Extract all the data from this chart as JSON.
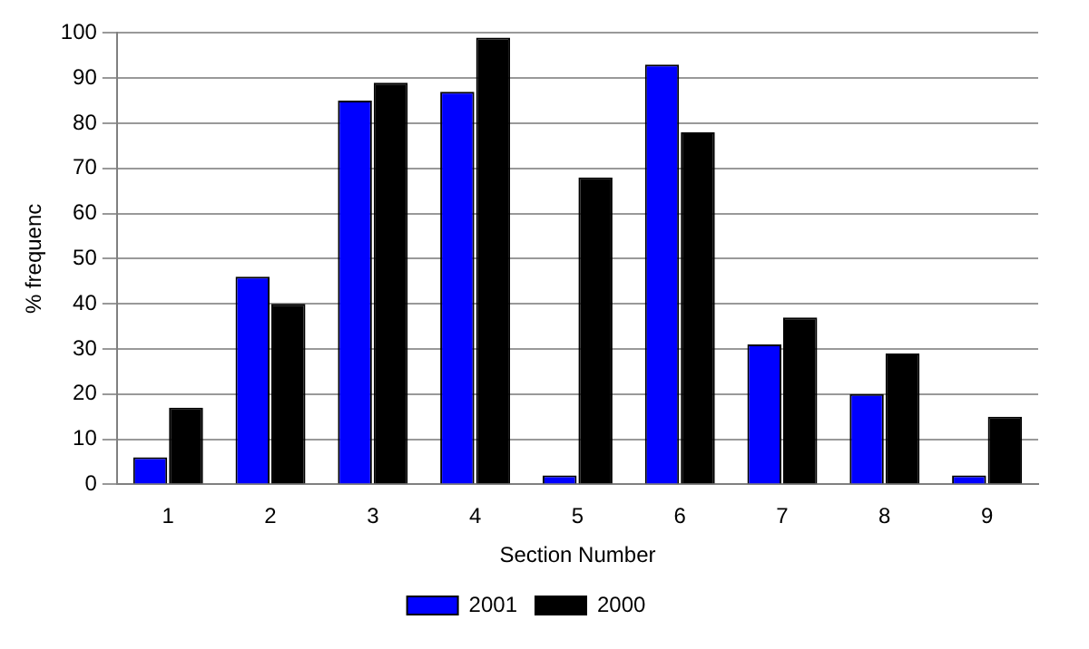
{
  "chart_data": {
    "type": "bar",
    "xlabel": "Section Number",
    "ylabel": "% frequenc",
    "categories": [
      "1",
      "2",
      "3",
      "4",
      "5",
      "6",
      "7",
      "8",
      "9"
    ],
    "series": [
      {
        "name": "2001",
        "color": "#0000ff",
        "values": [
          6,
          46,
          85,
          87,
          2,
          93,
          31,
          20,
          2
        ]
      },
      {
        "name": "2000",
        "color": "#000000",
        "values": [
          17,
          40,
          89,
          99,
          68,
          78,
          37,
          29,
          15
        ]
      }
    ],
    "ylim": [
      0,
      100
    ],
    "yticks": [
      0,
      10,
      20,
      30,
      40,
      50,
      60,
      70,
      80,
      90,
      100
    ],
    "grid": "y",
    "legend": "bottom"
  }
}
